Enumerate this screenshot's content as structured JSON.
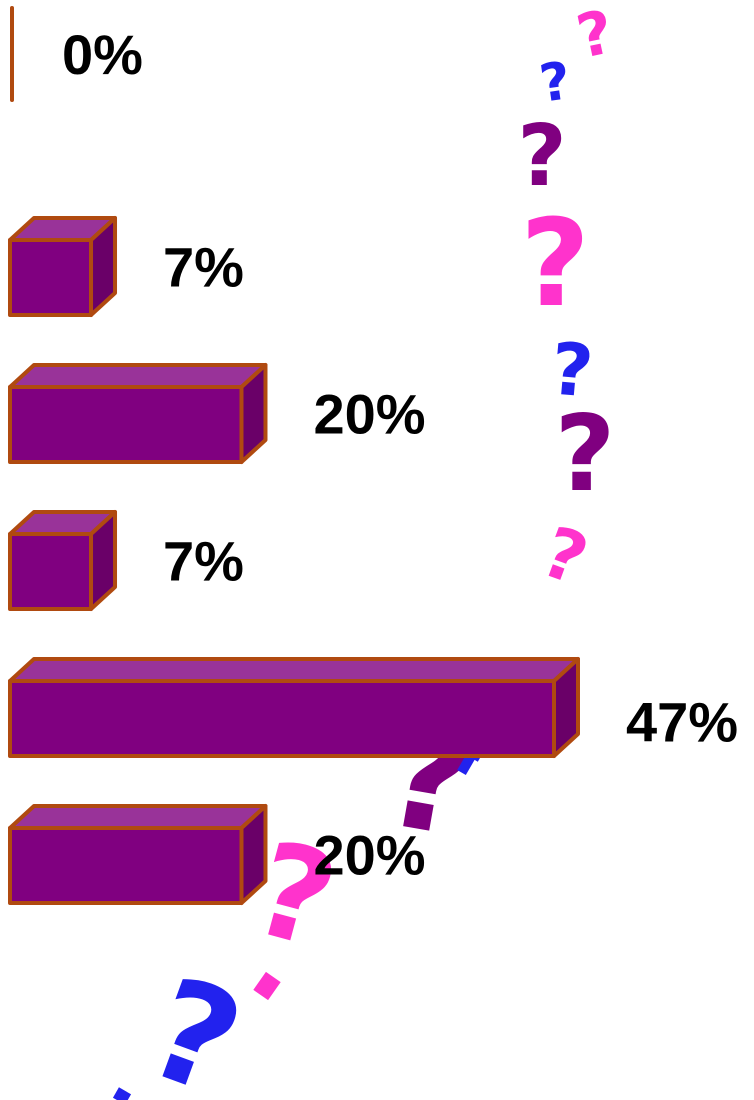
{
  "chart_data": {
    "type": "bar",
    "orientation": "horizontal",
    "style": "3d",
    "xlim": [
      0,
      47
    ],
    "grid": false,
    "legend": "none",
    "categories": [
      "",
      "",
      "",
      "",
      "",
      ""
    ],
    "values": [
      0,
      7,
      20,
      7,
      47,
      20
    ],
    "value_labels": [
      "0%",
      "7%",
      "20%",
      "7%",
      "47%",
      "20%"
    ]
  },
  "colors": {
    "bar_front": "#800080",
    "bar_top": "#993399",
    "bar_side": "#6a0068",
    "bar_outline": "#b04a10",
    "decoration_pink": "#ff33cc",
    "decoration_blue": "#2222ee",
    "decoration_purple": "#800080"
  },
  "decoration": {
    "name": "question-mark-trail",
    "icon": "question-mark-icon"
  }
}
